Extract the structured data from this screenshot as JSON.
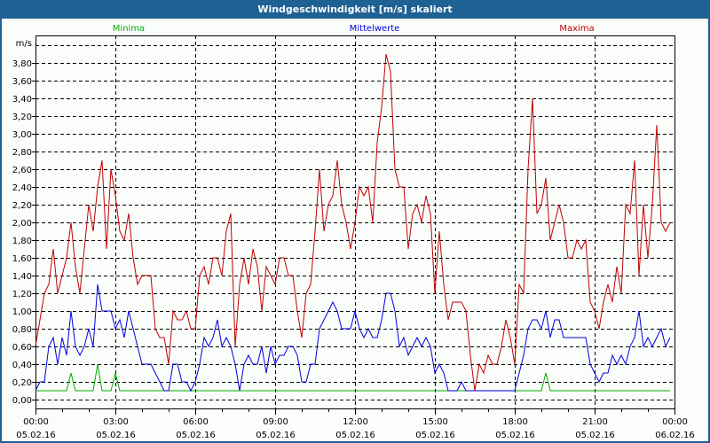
{
  "window": {
    "title": "Windgeschwindigkeit [m/s] skaliert"
  },
  "chart_data": {
    "type": "line",
    "title": "Windgeschwindigkeit [m/s] skaliert",
    "ylabel": "m/s",
    "xlabel": "",
    "ylim": [
      0,
      4.0
    ],
    "xlim_hours": [
      0,
      24
    ],
    "y_ticks": [
      "0,00",
      "0,20",
      "0,40",
      "0,60",
      "0,80",
      "1,00",
      "1,20",
      "1,40",
      "1,60",
      "1,80",
      "2,00",
      "2,20",
      "2,40",
      "2,60",
      "2,80",
      "3,00",
      "3,20",
      "3,40",
      "3,60",
      "3,80"
    ],
    "x_ticks": [
      {
        "time": "00:00",
        "date": "05.02.16"
      },
      {
        "time": "03:00",
        "date": "05.02.16"
      },
      {
        "time": "06:00",
        "date": "05.02.16"
      },
      {
        "time": "09:00",
        "date": "05.02.16"
      },
      {
        "time": "12:00",
        "date": "05.02.16"
      },
      {
        "time": "15:00",
        "date": "05.02.16"
      },
      {
        "time": "18:00",
        "date": "05.02.16"
      },
      {
        "time": "21:00",
        "date": "05.02.16"
      },
      {
        "time": "00:00",
        "date": "06.02.16"
      }
    ],
    "grid": true,
    "legend_placement": "top",
    "sample_interval_minutes": 10,
    "series": [
      {
        "name": "Minima",
        "color": "#00b000",
        "values": [
          0.1,
          0.1,
          0.1,
          0.1,
          0.1,
          0.1,
          0.1,
          0.1,
          0.3,
          0.1,
          0.1,
          0.1,
          0.1,
          0.1,
          0.4,
          0.1,
          0.1,
          0.1,
          0.3,
          0.1,
          0.1,
          0.1,
          0.1,
          0.1,
          0.1,
          0.1,
          0.1,
          0.1,
          0.1,
          0.1,
          0.1,
          0.1,
          0.1,
          0.1,
          0.1,
          0.1,
          0.1,
          0.1,
          0.1,
          0.1,
          0.1,
          0.1,
          0.1,
          0.1,
          0.1,
          0.1,
          0.1,
          0.1,
          0.1,
          0.1,
          0.1,
          0.1,
          0.1,
          0.1,
          0.1,
          0.1,
          0.1,
          0.1,
          0.1,
          0.1,
          0.1,
          0.1,
          0.1,
          0.1,
          0.1,
          0.1,
          0.1,
          0.1,
          0.1,
          0.1,
          0.1,
          0.1,
          0.1,
          0.1,
          0.1,
          0.1,
          0.1,
          0.1,
          0.1,
          0.1,
          0.1,
          0.1,
          0.1,
          0.1,
          0.1,
          0.1,
          0.1,
          0.1,
          0.1,
          0.1,
          0.1,
          0.1,
          0.1,
          0.1,
          0.1,
          0.1,
          0.1,
          0.1,
          0.1,
          0.1,
          0.1,
          0.1,
          0.1,
          0.1,
          0.1,
          0.1,
          0.1,
          0.1,
          0.1,
          0.1,
          0.1,
          0.1,
          0.1,
          0.1,
          0.1,
          0.3,
          0.1,
          0.1,
          0.1,
          0.1,
          0.1,
          0.1,
          0.1,
          0.1,
          0.1,
          0.1,
          0.1,
          0.1,
          0.1,
          0.1,
          0.1,
          0.1,
          0.1,
          0.1,
          0.1,
          0.1,
          0.1,
          0.1,
          0.1,
          0.1,
          0.1,
          0.1,
          0.1,
          0.1
        ]
      },
      {
        "name": "Mittelwerte",
        "color": "#0000e0",
        "values": [
          0.1,
          0.2,
          0.2,
          0.6,
          0.7,
          0.4,
          0.7,
          0.5,
          1.0,
          0.6,
          0.5,
          0.6,
          0.8,
          0.6,
          1.3,
          1.0,
          1.0,
          1.0,
          0.8,
          0.9,
          0.7,
          1.0,
          0.8,
          0.6,
          0.4,
          0.4,
          0.4,
          0.3,
          0.2,
          0.1,
          0.1,
          0.4,
          0.4,
          0.2,
          0.2,
          0.1,
          0.2,
          0.4,
          0.7,
          0.6,
          0.7,
          0.9,
          0.6,
          0.7,
          0.6,
          0.4,
          0.1,
          0.4,
          0.5,
          0.4,
          0.4,
          0.6,
          0.3,
          0.6,
          0.4,
          0.5,
          0.5,
          0.6,
          0.6,
          0.5,
          0.2,
          0.2,
          0.4,
          0.4,
          0.8,
          0.9,
          1.0,
          1.1,
          1.0,
          0.8,
          0.8,
          0.8,
          1.0,
          0.8,
          0.7,
          0.8,
          0.7,
          0.7,
          0.9,
          1.2,
          1.2,
          1.0,
          0.6,
          0.7,
          0.5,
          0.6,
          0.7,
          0.6,
          0.7,
          0.6,
          0.3,
          0.4,
          0.3,
          0.1,
          0.1,
          0.1,
          0.2,
          0.1,
          0.1,
          0.1,
          0.1,
          0.1,
          0.1,
          0.1,
          0.1,
          0.1,
          0.1,
          0.1,
          0.1,
          0.3,
          0.5,
          0.8,
          0.9,
          0.9,
          0.8,
          1.0,
          0.7,
          0.9,
          0.9,
          0.7,
          0.7,
          0.7,
          0.7,
          0.7,
          0.7,
          0.4,
          0.3,
          0.2,
          0.3,
          0.3,
          0.5,
          0.4,
          0.5,
          0.4,
          0.6,
          0.7,
          1.0,
          0.6,
          0.7,
          0.6,
          0.7,
          0.8,
          0.6,
          0.7
        ]
      },
      {
        "name": "Maxima",
        "color": "#c00000",
        "values": [
          0.6,
          0.9,
          1.2,
          1.3,
          1.7,
          1.2,
          1.4,
          1.6,
          2.0,
          1.5,
          1.2,
          1.7,
          2.2,
          1.9,
          2.4,
          2.7,
          1.7,
          2.6,
          2.3,
          1.9,
          1.8,
          2.1,
          1.6,
          1.3,
          1.4,
          1.4,
          1.4,
          0.8,
          0.7,
          0.7,
          0.4,
          1.0,
          0.9,
          0.9,
          1.0,
          0.8,
          0.8,
          1.4,
          1.5,
          1.3,
          1.6,
          1.6,
          1.4,
          1.9,
          2.1,
          0.6,
          1.3,
          1.6,
          1.3,
          1.7,
          1.5,
          1.0,
          1.5,
          1.4,
          1.3,
          1.6,
          1.6,
          1.4,
          1.4,
          1.0,
          0.7,
          1.2,
          1.3,
          1.9,
          2.6,
          1.9,
          2.2,
          2.3,
          2.7,
          2.2,
          2.0,
          1.7,
          2.0,
          2.4,
          2.3,
          2.4,
          2.0,
          2.9,
          3.3,
          3.9,
          3.7,
          2.6,
          2.4,
          2.4,
          1.7,
          2.1,
          2.2,
          2.0,
          2.3,
          2.1,
          1.2,
          1.9,
          1.3,
          0.9,
          1.1,
          1.1,
          1.1,
          1.0,
          0.5,
          0.1,
          0.4,
          0.3,
          0.5,
          0.4,
          0.4,
          0.6,
          0.9,
          0.7,
          0.4,
          1.3,
          1.2,
          2.6,
          3.4,
          2.1,
          2.2,
          2.5,
          1.8,
          2.0,
          2.2,
          2.0,
          1.6,
          1.6,
          1.8,
          1.7,
          1.8,
          1.1,
          1.0,
          0.8,
          1.1,
          1.3,
          1.1,
          1.5,
          1.2,
          2.2,
          2.1,
          2.7,
          1.4,
          2.2,
          1.6,
          2.2,
          3.1,
          2.0,
          1.9,
          2.0
        ]
      }
    ]
  }
}
